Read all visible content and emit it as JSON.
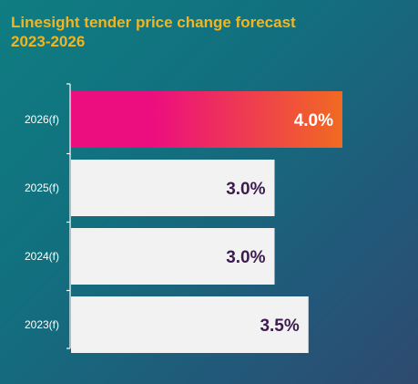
{
  "title_line1": "Linesight tender price change forecast",
  "title_line2": "2023-2026",
  "colors": {
    "bar_default": "#f2f2f2",
    "bar_highlight_start": "#ec0e7f",
    "bar_highlight_end": "#f16a21",
    "label_default": "#3d1b4f",
    "label_highlight": "#ffffff",
    "title": "#f2b51f"
  },
  "chart_data": {
    "type": "bar",
    "orientation": "horizontal",
    "title": "Linesight tender price change forecast 2023-2026",
    "categories": [
      "2026(f)",
      "2025(f)",
      "2024(f)",
      "2023(f)"
    ],
    "values": [
      4.0,
      3.0,
      3.0,
      3.5
    ],
    "value_labels": [
      "4.0%",
      "3.0%",
      "3.0%",
      "3.5%"
    ],
    "highlighted_category": "2026(f)",
    "xlim": [
      0,
      4.0
    ],
    "grid": false,
    "legend": "none"
  }
}
